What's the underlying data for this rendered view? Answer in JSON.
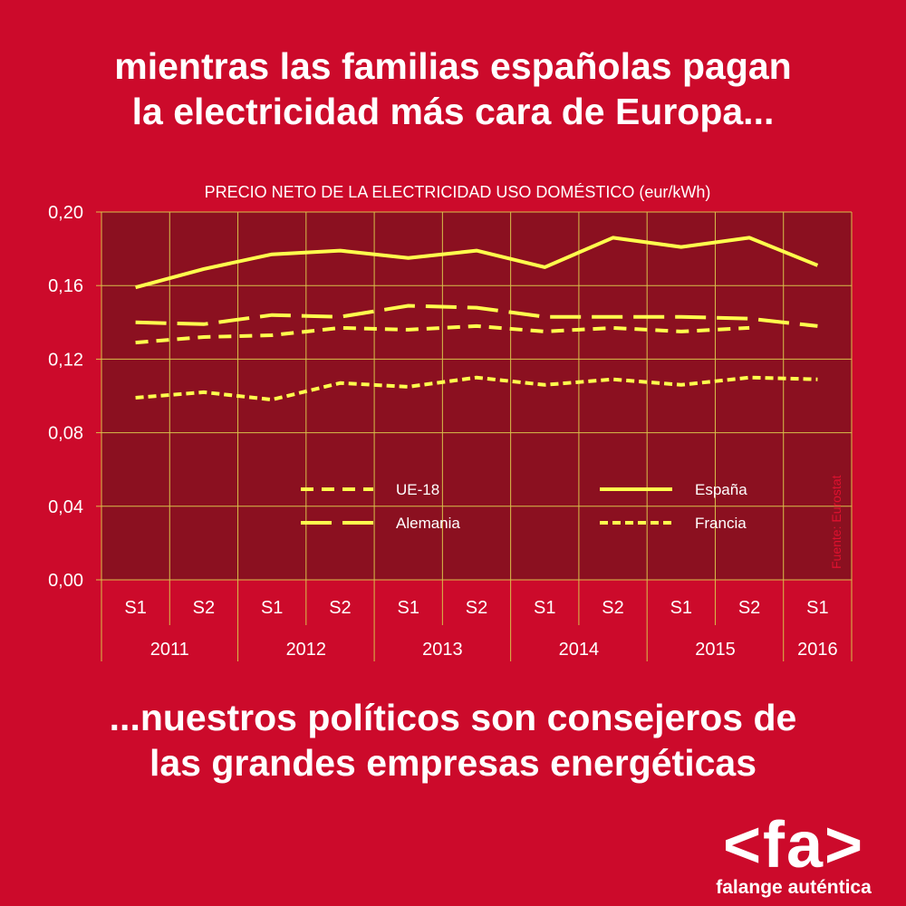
{
  "headline_top": [
    "mientras las familias españolas pagan",
    "la electricidad más cara de Europa..."
  ],
  "headline_bottom": [
    "...nuestros políticos son consejeros de",
    "las grandes empresas energéticas"
  ],
  "source_note": "Fuente: Eurostat",
  "logo": {
    "mark": "<fa>",
    "name": "falange auténtica"
  },
  "colors": {
    "background": "#cc0a2b",
    "plot_area": "#8b1020",
    "grid": "#d8c04a",
    "series": "#ffff4d",
    "text": "#ffffff",
    "source_note": "#e0112f"
  },
  "chart_data": {
    "type": "line",
    "title": "PRECIO NETO DE LA ELECTRICIDAD USO DOMÉSTICO (eur/kWh)",
    "categories": [
      "S1",
      "S2",
      "S1",
      "S2",
      "S1",
      "S2",
      "S1",
      "S2",
      "S1",
      "S2",
      "S1"
    ],
    "year_groups": [
      {
        "label": "2011",
        "span": 2
      },
      {
        "label": "2012",
        "span": 2
      },
      {
        "label": "2013",
        "span": 2
      },
      {
        "label": "2014",
        "span": 2
      },
      {
        "label": "2015",
        "span": 2
      },
      {
        "label": "2016",
        "span": 1
      }
    ],
    "ylim": [
      0,
      0.2
    ],
    "yticks": [
      "0,00",
      "0,04",
      "0,08",
      "0,12",
      "0,16",
      "0,20"
    ],
    "grid": true,
    "legend_position": "bottom-center inside plot",
    "series": [
      {
        "name": "UE-18",
        "style": "short-dash",
        "values": [
          0.129,
          0.132,
          0.133,
          0.137,
          0.136,
          0.138,
          0.135,
          0.137,
          0.135,
          0.137,
          null
        ]
      },
      {
        "name": "España",
        "style": "solid",
        "values": [
          0.159,
          0.169,
          0.177,
          0.179,
          0.175,
          0.179,
          0.17,
          0.186,
          0.181,
          0.186,
          0.171
        ]
      },
      {
        "name": "Alemania",
        "style": "long-dash",
        "values": [
          0.14,
          0.139,
          0.144,
          0.143,
          0.149,
          0.148,
          0.143,
          0.143,
          0.143,
          0.142,
          0.138
        ]
      },
      {
        "name": "Francia",
        "style": "dotted",
        "values": [
          0.099,
          0.102,
          0.098,
          0.107,
          0.105,
          0.11,
          0.106,
          0.109,
          0.106,
          0.11,
          0.109
        ]
      }
    ]
  }
}
